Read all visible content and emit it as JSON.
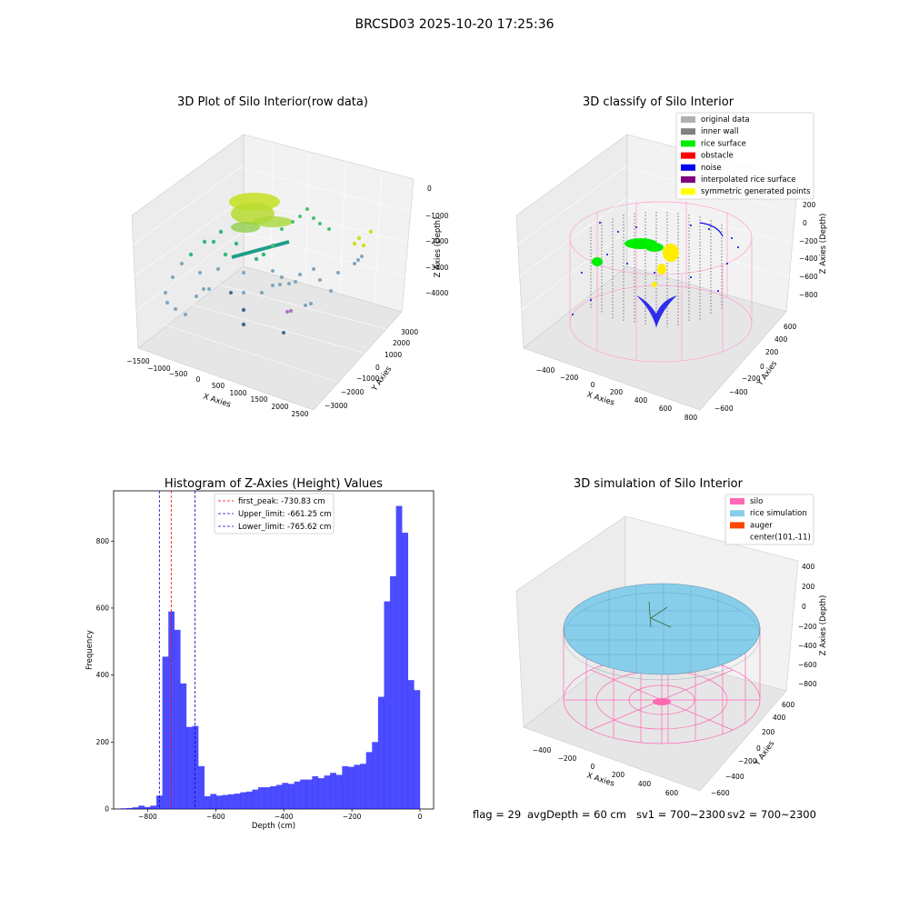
{
  "suptitle": "BRCSD03 2025-10-20 17:25:36",
  "panel_raw": {
    "title": "3D Plot of Silo Interior(row data)",
    "xlabel": "X Axies",
    "ylabel": "Y Axies",
    "zlabel": "Z Axies (Depth)",
    "xticks": [
      "−1500",
      "−1000",
      "−500",
      "0",
      "500",
      "1000",
      "1500",
      "2000",
      "2500"
    ],
    "yticks": [
      "−3000",
      "−2000",
      "−1000",
      "0",
      "1000",
      "2000",
      "3000"
    ],
    "zticks": [
      "−4000",
      "−3000",
      "−2000",
      "−1000",
      "0"
    ]
  },
  "panel_classify": {
    "title": "3D classify of Silo Interior",
    "xlabel": "X Axies",
    "ylabel": "Y Axies",
    "zlabel": "Z Axies (Depth)",
    "xticks": [
      "−400",
      "−200",
      "0",
      "200",
      "400",
      "600",
      "800"
    ],
    "yticks": [
      "−600",
      "−400",
      "−200",
      "0",
      "200",
      "400",
      "600"
    ],
    "zticks": [
      "−800",
      "−600",
      "−400",
      "−200",
      "0",
      "200"
    ],
    "legend": [
      {
        "label": "original data",
        "color": "#b0b0b0"
      },
      {
        "label": "inner wall",
        "color": "#808080"
      },
      {
        "label": "rice surface",
        "color": "#00ee00"
      },
      {
        "label": "obstacle",
        "color": "#ff0000"
      },
      {
        "label": "noise",
        "color": "#0000ee"
      },
      {
        "label": "interpolated rice surface",
        "color": "#800080"
      },
      {
        "label": "symmetric generated points",
        "color": "#ffff00"
      }
    ]
  },
  "panel_sim": {
    "title": "3D simulation of Silo Interior",
    "xlabel": "X Axies",
    "ylabel": "Y Axies",
    "zlabel": "Z Axies (Depth)",
    "xticks": [
      "−400",
      "−200",
      "0",
      "200",
      "400",
      "600"
    ],
    "yticks": [
      "−600",
      "−400",
      "−200",
      "0",
      "200",
      "400",
      "600"
    ],
    "zticks": [
      "−800",
      "−600",
      "−400",
      "−200",
      "0",
      "200",
      "400"
    ],
    "legend": [
      {
        "label": "silo",
        "color": "#ff69b4"
      },
      {
        "label": "rice simulation",
        "color": "#87ceeb"
      },
      {
        "label": "auger",
        "color": "#ff4500"
      },
      {
        "label": "center(101,-11)",
        "color": ""
      }
    ]
  },
  "status": {
    "flag": "flag = 29",
    "avg": "avgDepth = 60 cm",
    "sv1": "sv1 = 700~2300",
    "sv2": "sv2 = 700~2300"
  },
  "chart_data": {
    "type": "bar",
    "title": "Histogram of Z-Axies (Height) Values",
    "xlabel": "Depth (cm)",
    "ylabel": "Frequency",
    "xlim": [
      -900,
      40
    ],
    "ylim": [
      0,
      950
    ],
    "xticks": [
      -800,
      -600,
      -400,
      -200,
      0
    ],
    "yticks": [
      0,
      200,
      400,
      600,
      800
    ],
    "bar_color": "#0000ff",
    "bins_start": -880,
    "bin_width": 17.6,
    "values": [
      2,
      3,
      5,
      10,
      6,
      10,
      40,
      455,
      590,
      535,
      375,
      245,
      248,
      128,
      38,
      45,
      40,
      42,
      44,
      46,
      50,
      52,
      58,
      65,
      65,
      68,
      72,
      78,
      75,
      82,
      88,
      88,
      98,
      92,
      100,
      108,
      102,
      128,
      126,
      132,
      135,
      170,
      200,
      335,
      620,
      695,
      905,
      825,
      385,
      355
    ],
    "lines": [
      {
        "label": "first_peak: -730.83 cm",
        "x": -730.83,
        "color": "#ff0000"
      },
      {
        "label": "Upper_limit: -661.25 cm",
        "x": -661.25,
        "color": "#0000cc"
      },
      {
        "label": "Lower_limit: -765.62 cm",
        "x": -765.62,
        "color": "#0000cc"
      }
    ]
  }
}
